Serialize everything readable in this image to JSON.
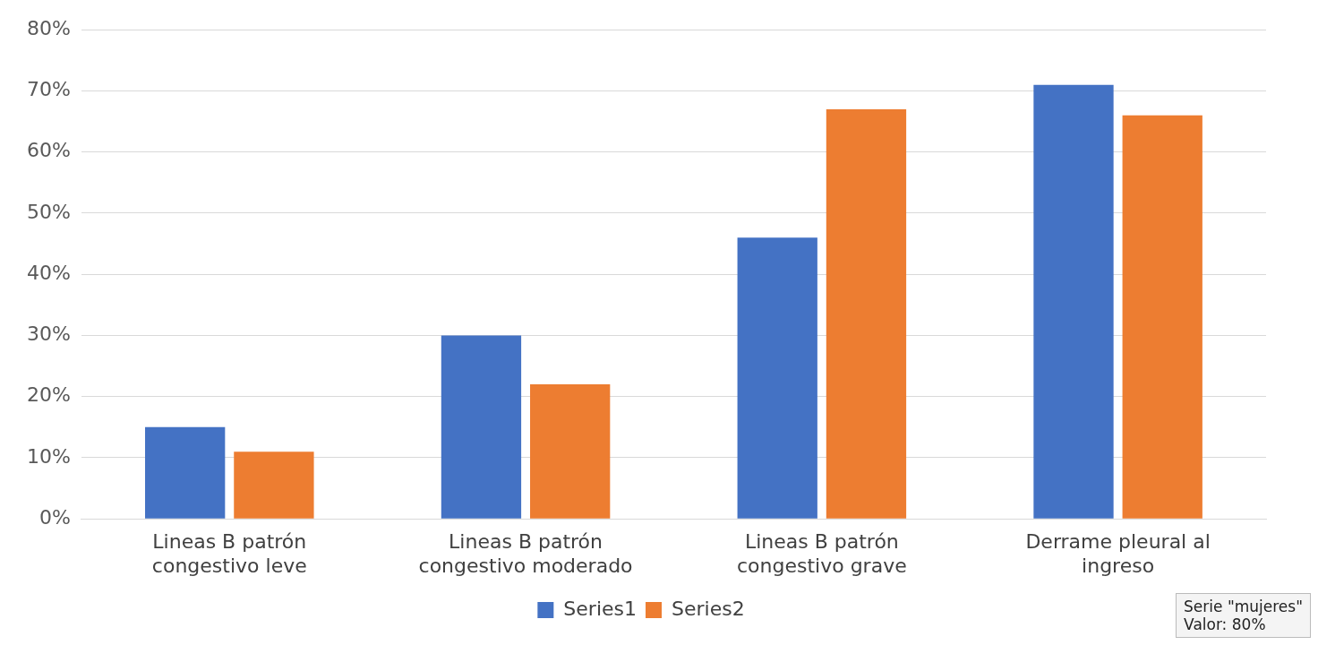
{
  "chart_data": {
    "type": "bar",
    "categories": [
      "Lineas B patrón congestivo leve",
      "Lineas B patrón congestivo moderado",
      "Lineas B patrón congestivo grave",
      "Derrame pleural al ingreso"
    ],
    "series": [
      {
        "name": "Series1",
        "color": "#4472c4",
        "values": [
          15,
          30,
          46,
          71
        ]
      },
      {
        "name": "Series2",
        "color": "#ed7d31",
        "values": [
          11,
          22,
          67,
          66
        ]
      }
    ],
    "ylim": [
      0,
      80
    ],
    "yticks": [
      {
        "value": 0,
        "label": "0%"
      },
      {
        "value": 10,
        "label": "10%"
      },
      {
        "value": 20,
        "label": "20%"
      },
      {
        "value": 30,
        "label": "30%"
      },
      {
        "value": 40,
        "label": "40%"
      },
      {
        "value": 50,
        "label": "50%"
      },
      {
        "value": 60,
        "label": "60%"
      },
      {
        "value": 70,
        "label": "70%"
      },
      {
        "value": 80,
        "label": "80%"
      }
    ],
    "grid": "y",
    "legend": "bottom",
    "annotations": [
      "Serie \"mujeres\"\nValor: 80%"
    ]
  }
}
